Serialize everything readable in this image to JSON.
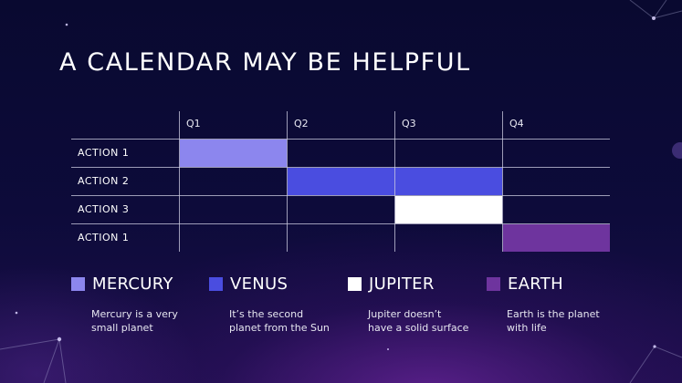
{
  "title": "A CALENDAR MAY BE HELPFUL",
  "calendar": {
    "quarters": [
      "Q1",
      "Q2",
      "Q3",
      "Q4"
    ],
    "rows": [
      {
        "label": "ACTION 1",
        "start_quarter": 1,
        "end_quarter": 1,
        "color": "#8c86ee"
      },
      {
        "label": "ACTION 2",
        "start_quarter": 2,
        "end_quarter": 3,
        "color": "#4a4de0"
      },
      {
        "label": "ACTION 3",
        "start_quarter": 3,
        "end_quarter": 3,
        "color": "#ffffff"
      },
      {
        "label": "ACTION 1",
        "start_quarter": 4,
        "end_quarter": 4,
        "color": "#6e349e"
      }
    ]
  },
  "legend": [
    {
      "name": "MERCURY",
      "color": "#8c86ee",
      "desc": [
        "Mercury is a very",
        "small planet"
      ]
    },
    {
      "name": "VENUS",
      "color": "#4a4de0",
      "desc": [
        "It’s the second",
        "planet from the Sun"
      ]
    },
    {
      "name": "JUPITER",
      "color": "#ffffff",
      "desc": [
        "Jupiter doesn’t",
        "have a solid surface"
      ]
    },
    {
      "name": "EARTH",
      "color": "#6e349e",
      "desc": [
        "Earth is the planet",
        "with life"
      ]
    }
  ]
}
